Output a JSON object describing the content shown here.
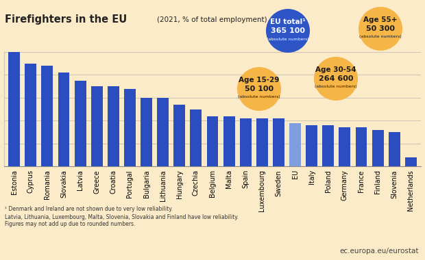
{
  "chart_data": {
    "type": "bar",
    "title": "Firefighters in the EU",
    "subtitle": "(2021, % of total employment)",
    "categories": [
      "Estonia",
      "Cyprus",
      "Romania",
      "Slovakia",
      "Latvia",
      "Greece",
      "Croatia",
      "Portugal",
      "Bulgaria",
      "Lithuania",
      "Hungary",
      "Czechia",
      "Belgium",
      "Malta",
      "Spain",
      "Luxembourg",
      "Sweden",
      "EU",
      "Italy",
      "Poland",
      "Germany",
      "France",
      "Finland",
      "Slovenia",
      "Netherlands"
    ],
    "values": [
      0.5,
      0.45,
      0.44,
      0.41,
      0.375,
      0.35,
      0.35,
      0.34,
      0.3,
      0.3,
      0.27,
      0.25,
      0.22,
      0.22,
      0.21,
      0.21,
      0.21,
      0.19,
      0.18,
      0.18,
      0.17,
      0.17,
      0.16,
      0.15,
      0.04
    ],
    "colors": [
      "#2a4dbf",
      "#2a4dbf",
      "#2a4dbf",
      "#2a4dbf",
      "#2a4dbf",
      "#2a4dbf",
      "#2a4dbf",
      "#2a4dbf",
      "#2a4dbf",
      "#2a4dbf",
      "#2a4dbf",
      "#2a4dbf",
      "#2a4dbf",
      "#2a4dbf",
      "#2a4dbf",
      "#2a4dbf",
      "#2a4dbf",
      "#7f9ee0",
      "#2a4dbf",
      "#2a4dbf",
      "#2a4dbf",
      "#2a4dbf",
      "#2a4dbf",
      "#2a4dbf",
      "#2a4dbf"
    ],
    "ylim": [
      0,
      0.5
    ],
    "yticks": [
      0,
      0.1,
      0.2,
      0.3,
      0.4,
      0.5
    ],
    "grid": true,
    "tick_labels": "x",
    "annotations": [
      {
        "lines": [
          "EU total¹",
          "365 100",
          "(absolute numbers)"
        ],
        "color": "#2e55c6"
      },
      {
        "lines": [
          "Age 15-29",
          "50 100",
          "(absolute numbers)"
        ],
        "color": "#f6b547"
      },
      {
        "lines": [
          "Age 30-54",
          "264 600",
          "(absolute numbers)"
        ],
        "color": "#f6b547"
      },
      {
        "lines": [
          "Age 55+",
          "50 300",
          "(absolute numbers)"
        ],
        "color": "#f6b547"
      }
    ],
    "footnotes": [
      "¹ Denmark and Ireland are not shown due to very low reliability.",
      "Latvia, Lithuania, Luxembourg, Malta, Slovenia, Slovakia and Finland have low reliability.",
      "Figures may not add up due to rounded numbers."
    ],
    "source": "ec.europa.eu/eurostat"
  }
}
